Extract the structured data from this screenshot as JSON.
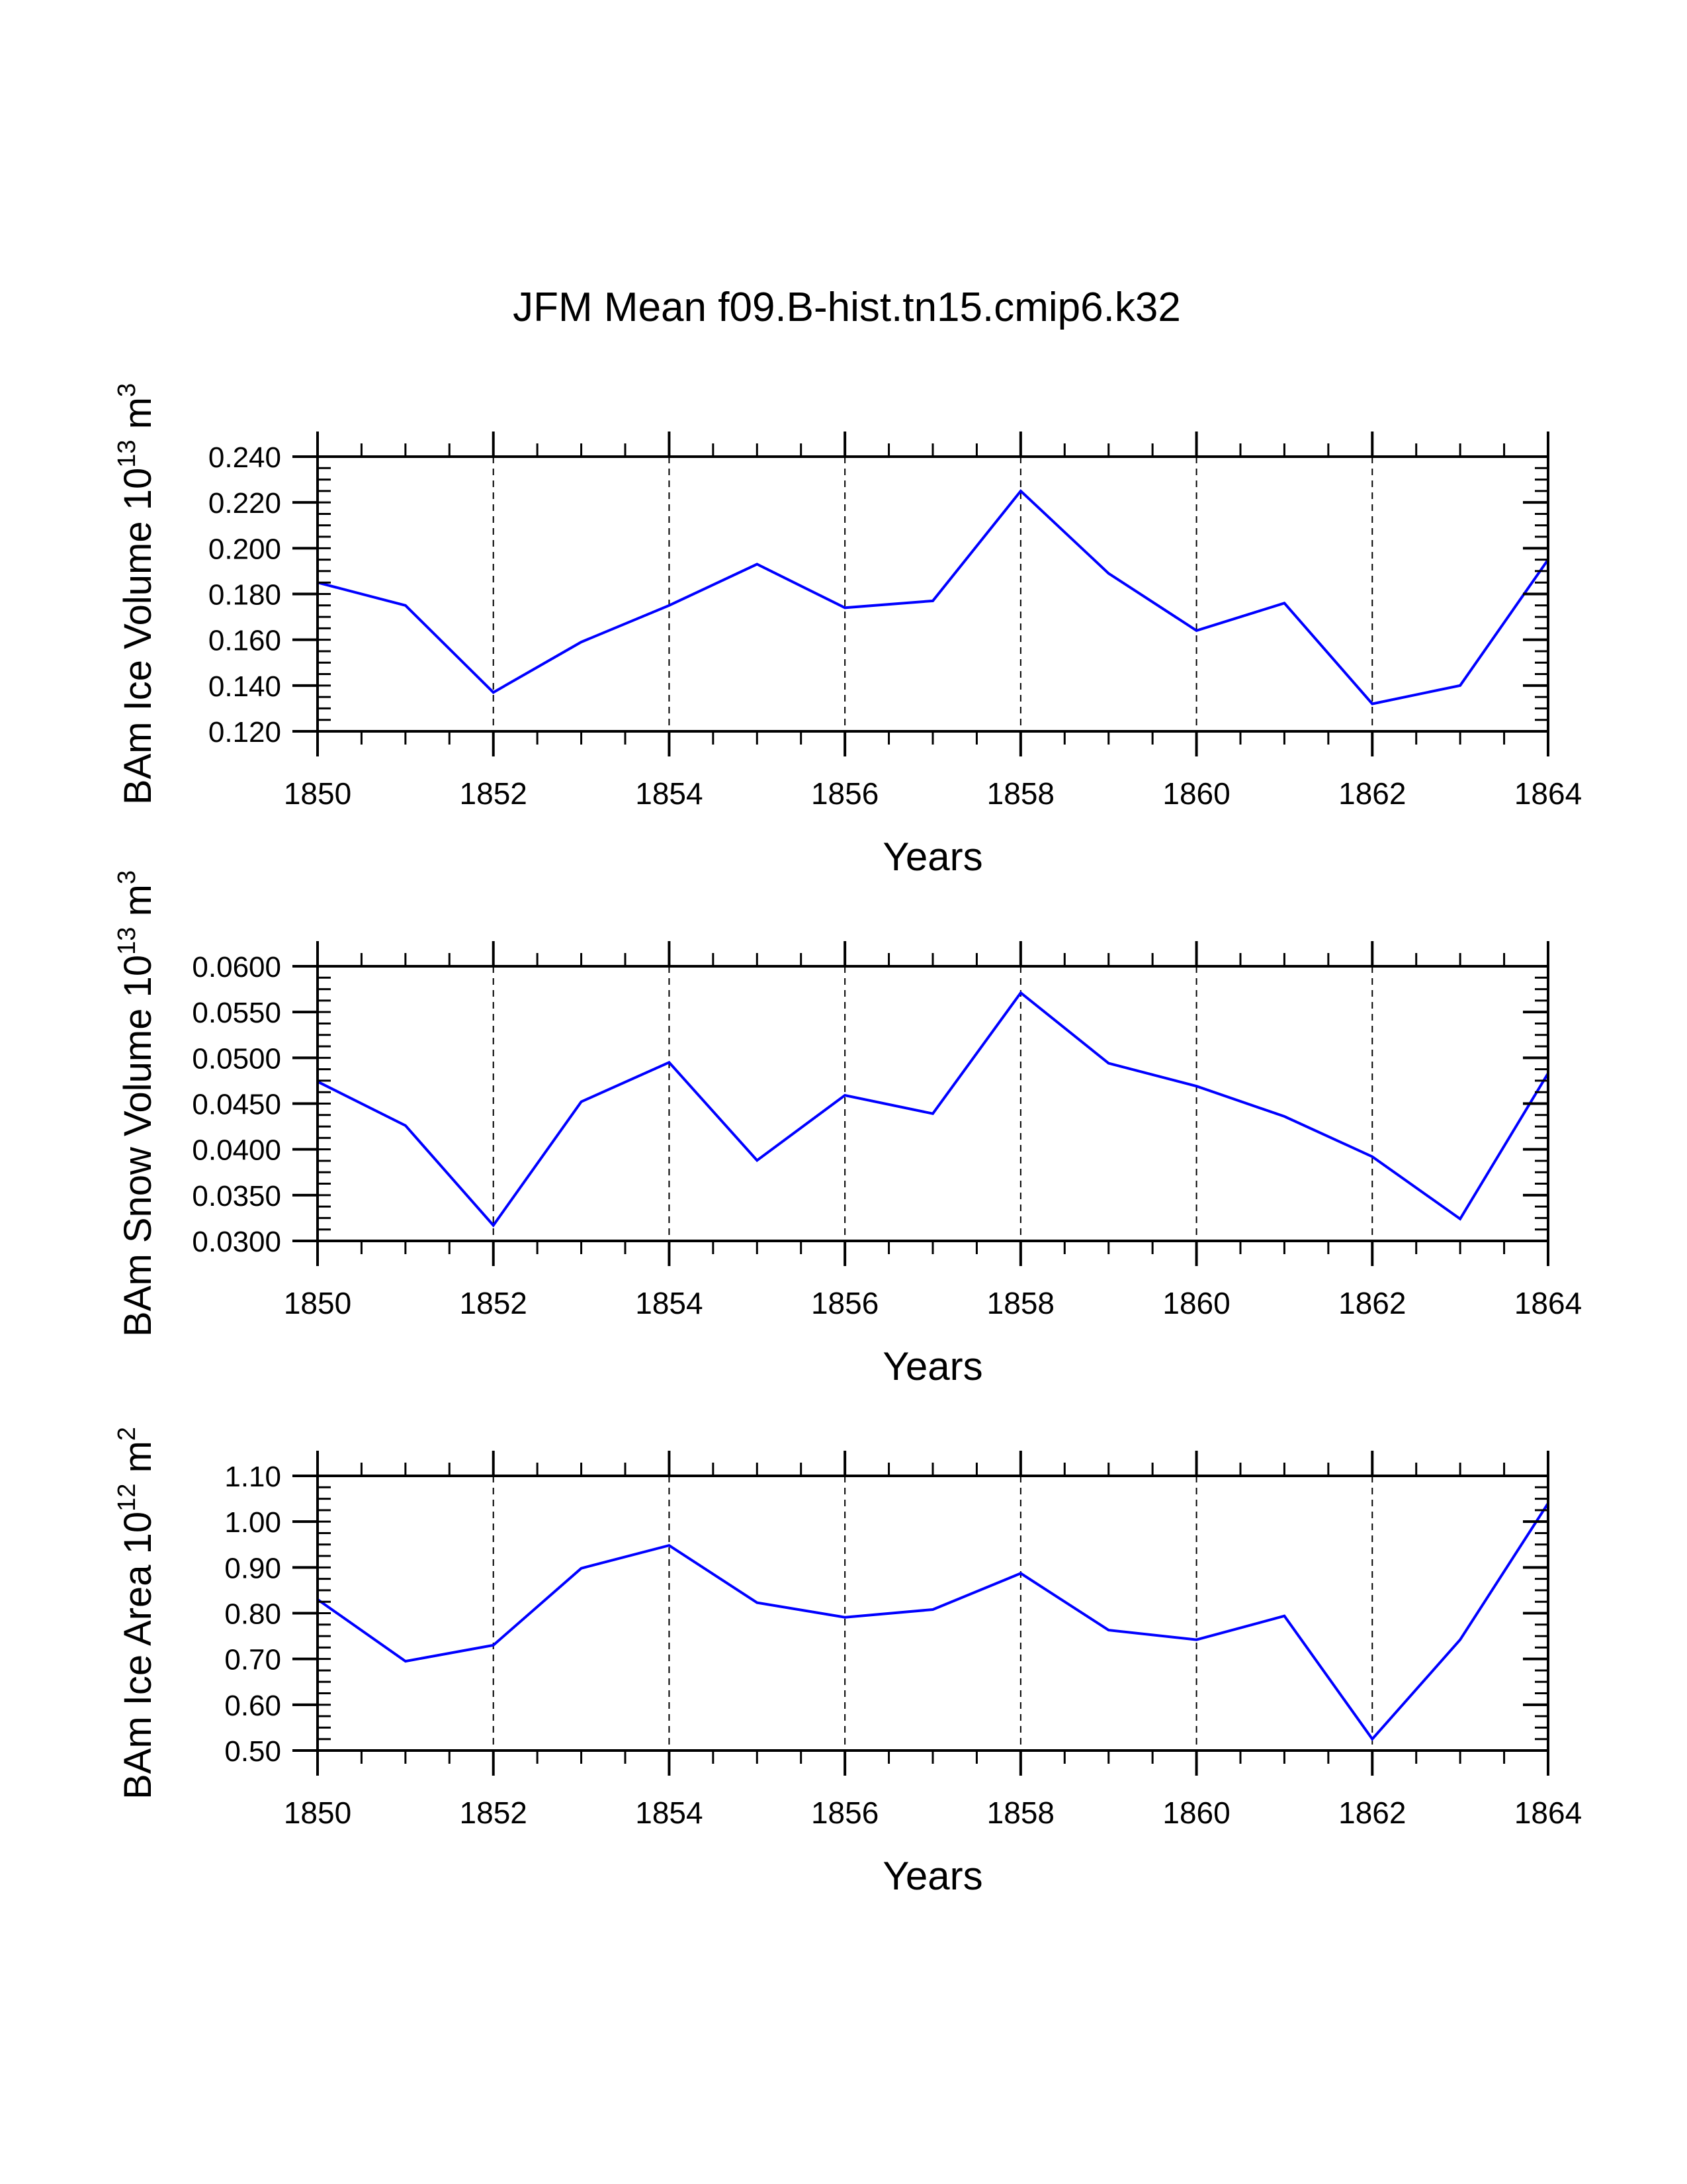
{
  "title": "JFM Mean f09.B-hist.tn15.cmip6.k32",
  "colors": {
    "line": "#0000ff",
    "axis": "#000000",
    "grid": "#000000",
    "background": "#ffffff"
  },
  "chart_data": [
    {
      "type": "line",
      "ylabel": {
        "main": "BAm Ice Volume 10",
        "sup": "13",
        "unit": " m",
        "unit_sup": "3"
      },
      "xlabel": "Years",
      "x": [
        1850,
        1851,
        1852,
        1853,
        1854,
        1855,
        1856,
        1857,
        1858,
        1859,
        1860,
        1861,
        1862,
        1863,
        1864
      ],
      "values": [
        0.185,
        0.175,
        0.137,
        0.159,
        0.175,
        0.193,
        0.174,
        0.177,
        0.225,
        0.189,
        0.164,
        0.176,
        0.132,
        0.14,
        0.195
      ],
      "xlim": [
        1850,
        1864
      ],
      "ylim": [
        0.12,
        0.24
      ],
      "xticks": [
        "1850",
        "1852",
        "1854",
        "1856",
        "1858",
        "1860",
        "1862",
        "1864"
      ],
      "yticks": [
        "0.120",
        "0.140",
        "0.160",
        "0.180",
        "0.200",
        "0.220",
        "0.240"
      ],
      "y_minor_step": 0.005,
      "vertical_grid": "dashed at major x ticks"
    },
    {
      "type": "line",
      "ylabel": {
        "main": "BAm Snow Volume 10",
        "sup": "13",
        "unit": " m",
        "unit_sup": "3"
      },
      "xlabel": "Years",
      "x": [
        1850,
        1851,
        1852,
        1853,
        1854,
        1855,
        1856,
        1857,
        1858,
        1859,
        1860,
        1861,
        1862,
        1863,
        1864
      ],
      "values": [
        0.0474,
        0.0426,
        0.0317,
        0.0452,
        0.0495,
        0.0388,
        0.0459,
        0.0439,
        0.0571,
        0.0494,
        0.0469,
        0.0436,
        0.0392,
        0.0324,
        0.0483
      ],
      "xlim": [
        1850,
        1864
      ],
      "ylim": [
        0.03,
        0.06
      ],
      "xticks": [
        "1850",
        "1852",
        "1854",
        "1856",
        "1858",
        "1860",
        "1862",
        "1864"
      ],
      "yticks": [
        "0.0300",
        "0.0350",
        "0.0400",
        "0.0450",
        "0.0500",
        "0.0550",
        "0.0600"
      ],
      "y_minor_step": 0.00125,
      "vertical_grid": "dashed at major x ticks"
    },
    {
      "type": "line",
      "ylabel": {
        "main": "BAm Ice Area 10",
        "sup": "12",
        "unit": " m",
        "unit_sup": "2"
      },
      "xlabel": "Years",
      "x": [
        1850,
        1851,
        1852,
        1853,
        1854,
        1855,
        1856,
        1857,
        1858,
        1859,
        1860,
        1861,
        1862,
        1863,
        1864
      ],
      "values": [
        0.83,
        0.695,
        0.73,
        0.898,
        0.948,
        0.823,
        0.791,
        0.808,
        0.887,
        0.763,
        0.742,
        0.794,
        0.525,
        0.742,
        1.04
      ],
      "xlim": [
        1850,
        1864
      ],
      "ylim": [
        0.5,
        1.1
      ],
      "xticks": [
        "1850",
        "1852",
        "1854",
        "1856",
        "1858",
        "1860",
        "1862",
        "1864"
      ],
      "yticks": [
        "0.50",
        "0.60",
        "0.70",
        "0.80",
        "0.90",
        "1.00",
        "1.10"
      ],
      "y_minor_step": 0.025,
      "vertical_grid": "dashed at major x ticks"
    }
  ]
}
